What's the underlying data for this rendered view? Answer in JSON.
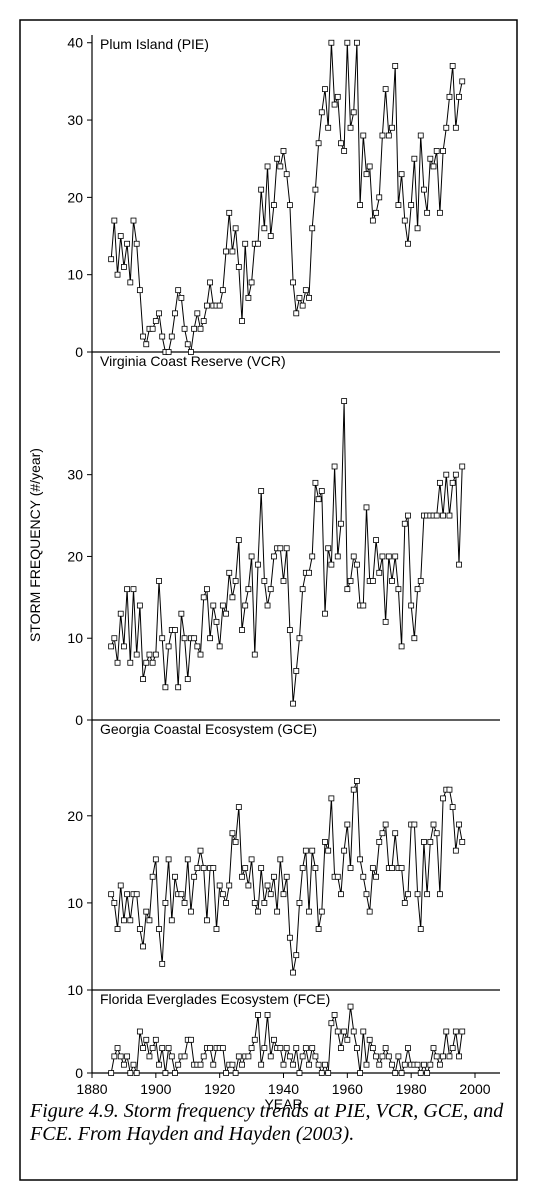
{
  "chart_data": [
    {
      "type": "line",
      "title": "Plum Island (PIE)",
      "ylabel": "STORM FREQUENCY (#/year)",
      "x": [
        1886,
        1887,
        1888,
        1889,
        1890,
        1891,
        1892,
        1893,
        1894,
        1895,
        1896,
        1897,
        1898,
        1899,
        1900,
        1901,
        1902,
        1903,
        1904,
        1905,
        1906,
        1907,
        1908,
        1909,
        1910,
        1911,
        1912,
        1913,
        1914,
        1915,
        1916,
        1917,
        1918,
        1919,
        1920,
        1921,
        1922,
        1923,
        1924,
        1925,
        1926,
        1927,
        1928,
        1929,
        1930,
        1931,
        1932,
        1933,
        1934,
        1935,
        1936,
        1937,
        1938,
        1939,
        1940,
        1941,
        1942,
        1943,
        1944,
        1945,
        1946,
        1947,
        1948,
        1949,
        1950,
        1951,
        1952,
        1953,
        1954,
        1955,
        1956,
        1957,
        1958,
        1959,
        1960,
        1961,
        1962,
        1963,
        1964,
        1965,
        1966,
        1967,
        1968,
        1969,
        1970,
        1971,
        1972,
        1973,
        1974,
        1975,
        1976,
        1977,
        1978,
        1979,
        1980,
        1981,
        1982,
        1983,
        1984,
        1985,
        1986,
        1987,
        1988,
        1989,
        1990,
        1991,
        1992,
        1993,
        1994,
        1995,
        1996
      ],
      "values": [
        12,
        17,
        10,
        15,
        11,
        14,
        9,
        17,
        14,
        8,
        2,
        1,
        3,
        3,
        4,
        5,
        2,
        0,
        0,
        2,
        5,
        8,
        7,
        3,
        1,
        0,
        3,
        5,
        3,
        4,
        6,
        9,
        6,
        6,
        6,
        8,
        13,
        18,
        13,
        16,
        11,
        4,
        14,
        7,
        9,
        14,
        14,
        21,
        16,
        24,
        15,
        19,
        25,
        24,
        26,
        23,
        19,
        9,
        5,
        7,
        6,
        8,
        7,
        16,
        21,
        27,
        31,
        34,
        29,
        40,
        32,
        33,
        27,
        26,
        40,
        29,
        31,
        40,
        19,
        28,
        23,
        24,
        17,
        18,
        20,
        28,
        34,
        28,
        29,
        37,
        19,
        23,
        17,
        14,
        19,
        25,
        16,
        28,
        21,
        18,
        25,
        24,
        26,
        18,
        26,
        29,
        33,
        37,
        29,
        33,
        35
      ],
      "ylim": [
        0,
        41
      ],
      "yticks": [
        0,
        10,
        20,
        30,
        40
      ],
      "color": "#000000"
    },
    {
      "type": "line",
      "title": "Virginia Coast Reserve (VCR)",
      "x": [
        1886,
        1887,
        1888,
        1889,
        1890,
        1891,
        1892,
        1893,
        1894,
        1895,
        1896,
        1897,
        1898,
        1899,
        1900,
        1901,
        1902,
        1903,
        1904,
        1905,
        1906,
        1907,
        1908,
        1909,
        1910,
        1911,
        1912,
        1913,
        1914,
        1915,
        1916,
        1917,
        1918,
        1919,
        1920,
        1921,
        1922,
        1923,
        1924,
        1925,
        1926,
        1927,
        1928,
        1929,
        1930,
        1931,
        1932,
        1933,
        1934,
        1935,
        1936,
        1937,
        1938,
        1939,
        1940,
        1941,
        1942,
        1943,
        1944,
        1945,
        1946,
        1947,
        1948,
        1949,
        1950,
        1951,
        1952,
        1953,
        1954,
        1955,
        1956,
        1957,
        1958,
        1959,
        1960,
        1961,
        1962,
        1963,
        1964,
        1965,
        1966,
        1967,
        1968,
        1969,
        1970,
        1971,
        1972,
        1973,
        1974,
        1975,
        1976,
        1977,
        1978,
        1979,
        1980,
        1981,
        1982,
        1983,
        1984,
        1985,
        1986,
        1987,
        1988,
        1989,
        1990,
        1991,
        1992,
        1993,
        1994,
        1995,
        1996
      ],
      "values": [
        9,
        10,
        7,
        13,
        9,
        16,
        7,
        16,
        8,
        14,
        5,
        7,
        8,
        7,
        8,
        17,
        10,
        4,
        9,
        11,
        11,
        4,
        13,
        10,
        5,
        10,
        10,
        9,
        8,
        15,
        16,
        10,
        14,
        12,
        9,
        14,
        13,
        18,
        15,
        17,
        22,
        11,
        14,
        16,
        20,
        8,
        19,
        28,
        17,
        14,
        16,
        20,
        21,
        21,
        17,
        21,
        11,
        2,
        6,
        10,
        16,
        18,
        18,
        20,
        29,
        27,
        28,
        13,
        21,
        19,
        31,
        20,
        24,
        39,
        16,
        17,
        20,
        19,
        14,
        14,
        26,
        17,
        17,
        22,
        18,
        20,
        12,
        20,
        17,
        20,
        16,
        9,
        24,
        25,
        14,
        10,
        16,
        17,
        25,
        25,
        25,
        25,
        25,
        29,
        25,
        30,
        25,
        29,
        30,
        19,
        31
      ],
      "ylim": [
        0,
        45
      ],
      "yticks": [
        0,
        10,
        20,
        30
      ],
      "color": "#000000"
    },
    {
      "type": "line",
      "title": "Georgia Coastal Ecosystem (GCE)",
      "x": [
        1886,
        1887,
        1888,
        1889,
        1890,
        1891,
        1892,
        1893,
        1894,
        1895,
        1896,
        1897,
        1898,
        1899,
        1900,
        1901,
        1902,
        1903,
        1904,
        1905,
        1906,
        1907,
        1908,
        1909,
        1910,
        1911,
        1912,
        1913,
        1914,
        1915,
        1916,
        1917,
        1918,
        1919,
        1920,
        1921,
        1922,
        1923,
        1924,
        1925,
        1926,
        1927,
        1928,
        1929,
        1930,
        1931,
        1932,
        1933,
        1934,
        1935,
        1936,
        1937,
        1938,
        1939,
        1940,
        1941,
        1942,
        1943,
        1944,
        1945,
        1946,
        1947,
        1948,
        1949,
        1950,
        1951,
        1952,
        1953,
        1954,
        1955,
        1956,
        1957,
        1958,
        1959,
        1960,
        1961,
        1962,
        1963,
        1964,
        1965,
        1966,
        1967,
        1968,
        1969,
        1970,
        1971,
        1972,
        1973,
        1974,
        1975,
        1976,
        1977,
        1978,
        1979,
        1980,
        1981,
        1982,
        1983,
        1984,
        1985,
        1986,
        1987,
        1988,
        1989,
        1990,
        1991,
        1992,
        1993,
        1994,
        1995,
        1996
      ],
      "values": [
        11,
        10,
        7,
        12,
        8,
        11,
        8,
        11,
        11,
        7,
        5,
        9,
        8,
        13,
        15,
        7,
        3,
        10,
        15,
        8,
        13,
        11,
        11,
        10,
        15,
        9,
        13,
        14,
        16,
        14,
        8,
        14,
        14,
        7,
        12,
        11,
        10,
        12,
        18,
        17,
        21,
        13,
        14,
        12,
        15,
        10,
        9,
        14,
        10,
        12,
        11,
        13,
        9,
        15,
        11,
        13,
        6,
        2,
        4,
        10,
        14,
        16,
        9,
        16,
        14,
        7,
        9,
        17,
        16,
        22,
        13,
        13,
        11,
        16,
        19,
        14,
        23,
        24,
        15,
        13,
        11,
        9,
        14,
        13,
        17,
        18,
        19,
        14,
        14,
        18,
        14,
        14,
        10,
        11,
        19,
        19,
        11,
        7,
        17,
        11,
        17,
        19,
        18,
        11,
        22,
        23,
        23,
        21,
        16,
        19,
        17
      ],
      "ylim": [
        0,
        31
      ],
      "yticks": [
        10,
        20
      ],
      "color": "#000000"
    },
    {
      "type": "line",
      "title": "Florida Everglades Ecosystem (FCE)",
      "xlabel": "YEAR",
      "x": [
        1886,
        1887,
        1888,
        1889,
        1890,
        1891,
        1892,
        1893,
        1894,
        1895,
        1896,
        1897,
        1898,
        1899,
        1900,
        1901,
        1902,
        1903,
        1904,
        1905,
        1906,
        1907,
        1908,
        1909,
        1910,
        1911,
        1912,
        1913,
        1914,
        1915,
        1916,
        1917,
        1918,
        1919,
        1920,
        1921,
        1922,
        1923,
        1924,
        1925,
        1926,
        1927,
        1928,
        1929,
        1930,
        1931,
        1932,
        1933,
        1934,
        1935,
        1936,
        1937,
        1938,
        1939,
        1940,
        1941,
        1942,
        1943,
        1944,
        1945,
        1946,
        1947,
        1948,
        1949,
        1950,
        1951,
        1952,
        1953,
        1954,
        1955,
        1956,
        1957,
        1958,
        1959,
        1960,
        1961,
        1962,
        1963,
        1964,
        1965,
        1966,
        1967,
        1968,
        1969,
        1970,
        1971,
        1972,
        1973,
        1974,
        1975,
        1976,
        1977,
        1978,
        1979,
        1980,
        1981,
        1982,
        1983,
        1984,
        1985,
        1986,
        1987,
        1988,
        1989,
        1990,
        1991,
        1992,
        1993,
        1994,
        1995,
        1996
      ],
      "values": [
        0,
        2,
        3,
        2,
        1,
        2,
        0,
        1,
        0,
        5,
        3,
        4,
        2,
        3,
        4,
        1,
        3,
        0,
        3,
        2,
        0,
        1,
        2,
        2,
        4,
        4,
        1,
        1,
        1,
        2,
        3,
        3,
        1,
        3,
        3,
        3,
        0,
        1,
        1,
        0,
        2,
        1,
        2,
        2,
        3,
        4,
        7,
        1,
        3,
        7,
        2,
        4,
        3,
        3,
        1,
        3,
        2,
        1,
        3,
        0,
        2,
        3,
        1,
        3,
        2,
        1,
        0,
        1,
        0,
        6,
        7,
        5,
        3,
        5,
        4,
        8,
        5,
        3,
        0,
        5,
        1,
        4,
        3,
        2,
        1,
        2,
        3,
        2,
        1,
        0,
        2,
        0,
        1,
        3,
        1,
        1,
        1,
        0,
        1,
        0,
        1,
        3,
        2,
        1,
        2,
        5,
        2,
        3,
        5,
        2,
        5
      ],
      "ylim": [
        0,
        10
      ],
      "yticks": [
        0,
        10
      ],
      "xlim": [
        1880,
        2000
      ],
      "xticks": [
        1880,
        1900,
        1920,
        1940,
        1960,
        1980,
        2000
      ],
      "color": "#000000"
    }
  ],
  "caption": "Figure 4.9.  Storm frequency trends at PIE, VCR, GCE, and FCE.  From Hayden and Hayden (2003)."
}
